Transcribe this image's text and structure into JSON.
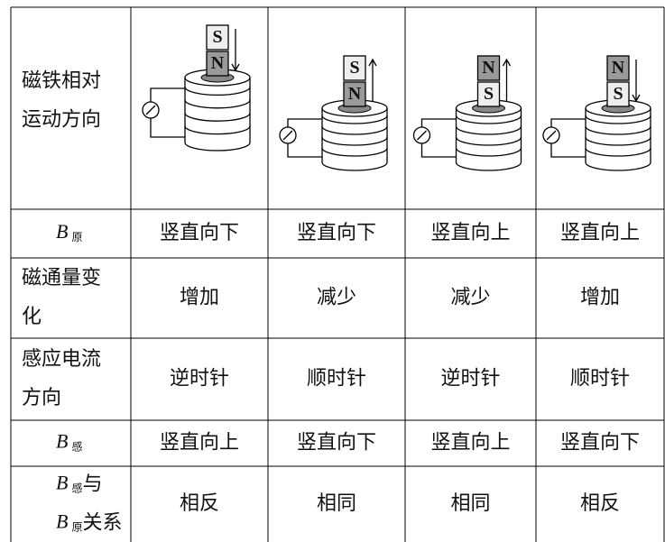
{
  "table": {
    "rows": [
      {
        "label": [
          "磁铁相对",
          "运动方向"
        ],
        "magnets": [
          [
            "S",
            "N"
          ],
          [
            "S",
            "N"
          ],
          [
            "N",
            "S"
          ],
          [
            "N",
            "S"
          ]
        ]
      },
      {
        "label": [
          {
            "symbol": "B",
            "sub": "原"
          }
        ],
        "cells": [
          "竖直向下",
          "竖直向下",
          "竖直向上",
          "竖直向上"
        ]
      },
      {
        "label": [
          "磁通量变",
          "化"
        ],
        "cells": [
          "增加",
          "减少",
          "减少",
          "增加"
        ]
      },
      {
        "label": [
          "感应电流",
          "方向"
        ],
        "cells": [
          "逆时针",
          "顺时针",
          "逆时针",
          "顺时针"
        ]
      },
      {
        "label": [
          {
            "symbol": "B",
            "sub": "感"
          }
        ],
        "cells": [
          "竖直向上",
          "竖直向下",
          "竖直向上",
          "竖直向下"
        ]
      },
      {
        "label": [
          {
            "symbol": "B",
            "sub": "感",
            "text": "与"
          },
          {
            "symbol": "B",
            "sub": "原",
            "text": "关系"
          }
        ],
        "cells": [
          "相反",
          "相同",
          "相同",
          "相反"
        ]
      }
    ]
  }
}
